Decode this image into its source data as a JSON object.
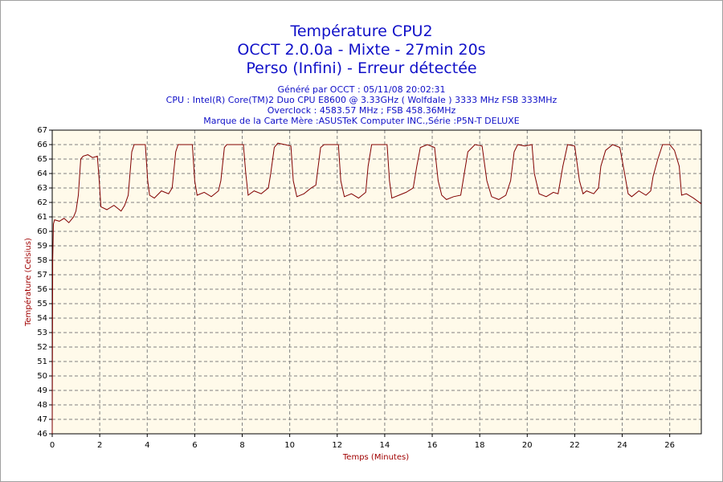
{
  "chart_data": {
    "type": "line",
    "title": "Température CPU2",
    "subtitle": "OCCT 2.0.0a - Mixte - 27min 20s",
    "subtitle2": "Perso (Infini) - Erreur détectée",
    "info": [
      "Généré par OCCT : 05/11/08 20:02:31",
      "CPU : Intel(R) Core(TM)2 Duo CPU E8600 @ 3.33GHz ( Wolfdale ) 3333 MHz FSB 333MHz",
      "Overclock : 4583.57 MHz ; FSB 458.36MHz",
      "Marque de la Carte Mère :ASUSTeK Computer INC.,Série :P5N-T DELUXE"
    ],
    "x_label": "Temps (Minutes)",
    "y_label": "Température (Celsius)",
    "xlim": [
      0,
      27.33
    ],
    "xticks": [
      0,
      2,
      4,
      6,
      8,
      10,
      12,
      14,
      16,
      18,
      20,
      22,
      24,
      26
    ],
    "ylim": [
      46,
      67
    ],
    "yticks": [
      46,
      47,
      48,
      49,
      50,
      51,
      52,
      53,
      54,
      55,
      56,
      57,
      58,
      59,
      60,
      61,
      62,
      63,
      64,
      65,
      66,
      67
    ],
    "grid": true,
    "x": [
      0,
      0.02,
      0.05,
      0.1,
      0.3,
      0.5,
      0.7,
      0.9,
      1.0,
      1.1,
      1.2,
      1.3,
      1.5,
      1.7,
      1.9,
      1.98,
      2.05,
      2.3,
      2.6,
      2.9,
      3.05,
      3.2,
      3.35,
      3.45,
      3.7,
      3.92,
      4.02,
      4.1,
      4.3,
      4.6,
      4.9,
      5.05,
      5.2,
      5.3,
      5.6,
      5.9,
      6.0,
      6.1,
      6.4,
      6.7,
      7.0,
      7.1,
      7.25,
      7.35,
      7.7,
      8.05,
      8.15,
      8.25,
      8.5,
      8.8,
      9.1,
      9.2,
      9.35,
      9.5,
      9.8,
      10.05,
      10.15,
      10.3,
      10.6,
      10.9,
      11.1,
      11.3,
      11.45,
      11.8,
      12.05,
      12.15,
      12.3,
      12.6,
      12.9,
      13.2,
      13.3,
      13.45,
      13.8,
      14.1,
      14.2,
      14.3,
      14.6,
      14.9,
      15.2,
      15.35,
      15.5,
      15.8,
      16.1,
      16.25,
      16.4,
      16.6,
      16.9,
      17.2,
      17.35,
      17.5,
      17.8,
      18.1,
      18.3,
      18.5,
      18.8,
      19.1,
      19.3,
      19.45,
      19.6,
      19.9,
      20.2,
      20.3,
      20.5,
      20.8,
      21.1,
      21.3,
      21.5,
      21.7,
      22.0,
      22.2,
      22.35,
      22.5,
      22.8,
      23.0,
      23.1,
      23.3,
      23.6,
      23.9,
      24.1,
      24.25,
      24.4,
      24.7,
      25.0,
      25.2,
      25.3,
      25.5,
      25.7,
      26.0,
      26.2,
      26.4,
      26.5,
      26.7,
      27.0,
      27.33
    ],
    "series": [
      {
        "color": "#800000",
        "values": [
          46,
          58,
          60.5,
          60.8,
          60.7,
          60.9,
          60.6,
          61,
          61.4,
          62.5,
          65,
          65.2,
          65.3,
          65.1,
          65.2,
          63.5,
          61.7,
          61.5,
          61.8,
          61.4,
          61.8,
          62.5,
          65.5,
          66,
          66,
          66,
          63.5,
          62.5,
          62.3,
          62.8,
          62.6,
          63,
          65.5,
          66,
          66,
          66,
          63.5,
          62.5,
          62.7,
          62.4,
          62.8,
          63.5,
          65.8,
          66,
          66,
          66,
          64,
          62.5,
          62.8,
          62.6,
          63,
          64,
          65.8,
          66.1,
          66,
          65.9,
          63.5,
          62.4,
          62.6,
          63,
          63.2,
          65.8,
          66,
          66,
          66,
          63.5,
          62.4,
          62.6,
          62.3,
          62.7,
          64.5,
          66,
          66,
          66,
          63.5,
          62.3,
          62.5,
          62.7,
          63,
          64.5,
          65.8,
          66,
          65.8,
          63.5,
          62.5,
          62.2,
          62.4,
          62.5,
          64,
          65.5,
          66,
          65.9,
          63.5,
          62.4,
          62.2,
          62.5,
          63.5,
          65.5,
          66,
          65.9,
          66,
          64,
          62.6,
          62.4,
          62.7,
          62.6,
          64.5,
          66,
          65.9,
          63.5,
          62.6,
          62.8,
          62.6,
          63,
          64.5,
          65.6,
          66,
          65.8,
          64,
          62.6,
          62.4,
          62.8,
          62.5,
          62.8,
          63.8,
          65,
          66,
          66,
          65.6,
          64.5,
          62.5,
          62.6,
          62.3,
          61.9
        ]
      }
    ]
  }
}
